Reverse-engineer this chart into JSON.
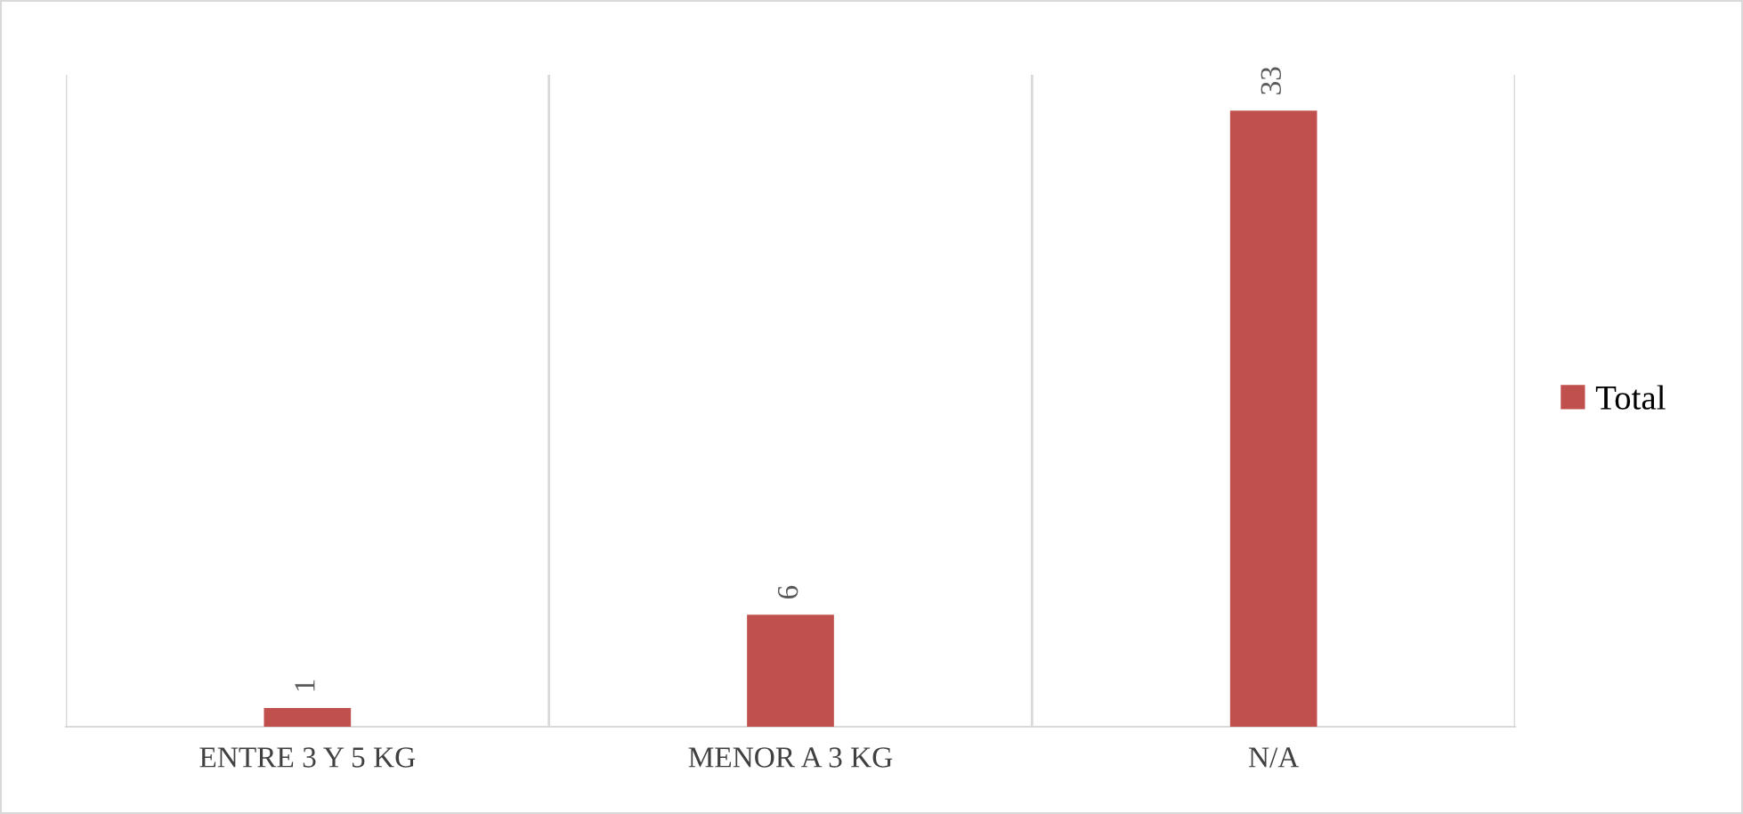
{
  "chart_data": {
    "type": "bar",
    "categories": [
      "ENTRE 3 Y 5 KG",
      "MENOR A 3 KG",
      "N/A"
    ],
    "series": [
      {
        "name": "Total",
        "color": "#c0504d",
        "values": [
          1,
          6,
          33
        ]
      }
    ],
    "data_labels": true,
    "grid": "x",
    "legend": "right"
  }
}
